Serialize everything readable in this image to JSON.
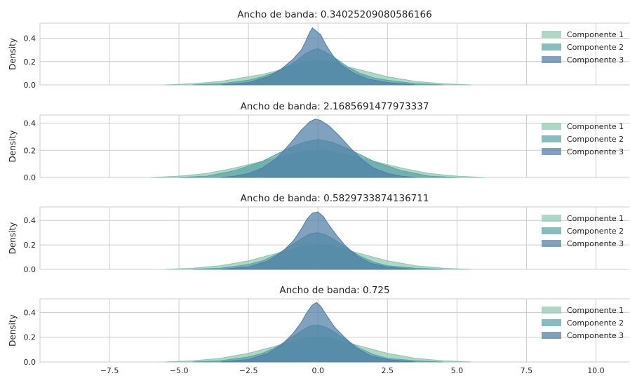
{
  "colors": {
    "grid": "#cccccc",
    "series": [
      "#8fc7ae",
      "#5aa3a6",
      "#4f7ea6"
    ]
  },
  "chart_data": [
    {
      "type": "area",
      "title": "Ancho de banda: 0.34025209080586166",
      "ylabel": "Density",
      "xlim": [
        -10,
        11.2
      ],
      "ylim": [
        0,
        0.53
      ],
      "xticks": [
        -7.5,
        -5.0,
        -2.5,
        0.0,
        2.5,
        5.0,
        7.5,
        10.0
      ],
      "xticklabels": [],
      "yticks": [
        0.0,
        0.2,
        0.4
      ],
      "yticklabels": [
        "0.0",
        "0.2",
        "0.4"
      ],
      "legend_position": "top-right",
      "series": [
        {
          "name": "Componente 1",
          "x": [
            -5.5,
            -4.5,
            -3.5,
            -2.5,
            -2.0,
            -1.5,
            -1.0,
            -0.6,
            -0.3,
            0.0,
            0.3,
            0.6,
            1.0,
            1.5,
            2.0,
            2.5,
            3.5,
            4.5,
            5.5
          ],
          "y": [
            0.0,
            0.01,
            0.03,
            0.07,
            0.09,
            0.12,
            0.16,
            0.19,
            0.2,
            0.21,
            0.2,
            0.19,
            0.16,
            0.13,
            0.1,
            0.07,
            0.03,
            0.01,
            0.0
          ]
        },
        {
          "name": "Componente 2",
          "x": [
            -4.5,
            -3.5,
            -2.5,
            -2.0,
            -1.5,
            -1.1,
            -0.8,
            -0.5,
            -0.2,
            0.0,
            0.2,
            0.5,
            0.8,
            1.1,
            1.5,
            2.0,
            2.5,
            3.5,
            4.5
          ],
          "y": [
            0.0,
            0.01,
            0.04,
            0.07,
            0.11,
            0.16,
            0.2,
            0.26,
            0.3,
            0.31,
            0.29,
            0.25,
            0.2,
            0.15,
            0.1,
            0.06,
            0.04,
            0.01,
            0.0
          ]
        },
        {
          "name": "Componente 3",
          "x": [
            -3.5,
            -2.5,
            -1.8,
            -1.3,
            -0.9,
            -0.6,
            -0.45,
            -0.3,
            -0.2,
            -0.1,
            0.0,
            0.1,
            0.25,
            0.4,
            0.6,
            0.9,
            1.3,
            1.8,
            2.5,
            3.5
          ],
          "y": [
            0.0,
            0.02,
            0.07,
            0.14,
            0.22,
            0.3,
            0.37,
            0.45,
            0.49,
            0.47,
            0.45,
            0.43,
            0.36,
            0.3,
            0.23,
            0.16,
            0.1,
            0.05,
            0.02,
            0.0
          ]
        }
      ]
    },
    {
      "type": "area",
      "title": "Ancho de banda: 2.1685691477973337",
      "ylabel": "Density",
      "xlim": [
        -10,
        11.2
      ],
      "ylim": [
        0,
        0.46
      ],
      "xticks": [
        -7.5,
        -5.0,
        -2.5,
        0.0,
        2.5,
        5.0,
        7.5,
        10.0
      ],
      "xticklabels": [],
      "yticks": [
        0.0,
        0.2,
        0.4
      ],
      "yticklabels": [
        "0.0",
        "0.2",
        "0.4"
      ],
      "legend_position": "top-right",
      "series": [
        {
          "name": "Componente 1",
          "x": [
            -6.0,
            -5.0,
            -4.0,
            -3.0,
            -2.0,
            -1.0,
            -0.5,
            0.0,
            0.5,
            1.0,
            2.0,
            3.0,
            4.0,
            5.0,
            6.0
          ],
          "y": [
            0.0,
            0.01,
            0.03,
            0.07,
            0.12,
            0.17,
            0.19,
            0.2,
            0.19,
            0.17,
            0.12,
            0.07,
            0.03,
            0.01,
            0.0
          ]
        },
        {
          "name": "Componente 2",
          "x": [
            -5.0,
            -4.0,
            -3.0,
            -2.0,
            -1.5,
            -1.0,
            -0.5,
            0.0,
            0.5,
            1.0,
            1.5,
            2.0,
            3.0,
            4.0,
            5.0
          ],
          "y": [
            0.0,
            0.01,
            0.05,
            0.12,
            0.17,
            0.22,
            0.26,
            0.28,
            0.26,
            0.22,
            0.17,
            0.12,
            0.05,
            0.01,
            0.0
          ]
        },
        {
          "name": "Componente 3",
          "x": [
            -3.5,
            -3.0,
            -2.5,
            -2.0,
            -1.5,
            -1.0,
            -0.6,
            -0.3,
            -0.1,
            0.1,
            0.4,
            0.8,
            1.2,
            1.6,
            2.0,
            2.5,
            3.0,
            3.5
          ],
          "y": [
            0.0,
            0.01,
            0.03,
            0.07,
            0.14,
            0.25,
            0.35,
            0.41,
            0.43,
            0.42,
            0.38,
            0.3,
            0.21,
            0.13,
            0.07,
            0.03,
            0.01,
            0.0
          ]
        }
      ]
    },
    {
      "type": "area",
      "title": "Ancho de banda: 0.5829733874136711",
      "ylabel": "Density",
      "xlim": [
        -10,
        11.2
      ],
      "ylim": [
        0,
        0.51
      ],
      "xticks": [
        -7.5,
        -5.0,
        -2.5,
        0.0,
        2.5,
        5.0,
        7.5,
        10.0
      ],
      "xticklabels": [],
      "yticks": [
        0.0,
        0.2,
        0.4
      ],
      "yticklabels": [
        "0.0",
        "0.2",
        "0.4"
      ],
      "legend_position": "top-right",
      "series": [
        {
          "name": "Componente 1",
          "x": [
            -5.5,
            -4.5,
            -3.5,
            -2.5,
            -2.0,
            -1.5,
            -1.0,
            -0.5,
            0.0,
            0.5,
            1.0,
            1.5,
            2.0,
            2.5,
            3.5,
            4.5,
            5.5
          ],
          "y": [
            0.0,
            0.01,
            0.03,
            0.07,
            0.1,
            0.13,
            0.16,
            0.19,
            0.2,
            0.19,
            0.16,
            0.13,
            0.1,
            0.07,
            0.03,
            0.01,
            0.0
          ]
        },
        {
          "name": "Componente 2",
          "x": [
            -4.5,
            -3.5,
            -2.5,
            -2.0,
            -1.5,
            -1.0,
            -0.6,
            -0.3,
            0.0,
            0.3,
            0.6,
            1.0,
            1.5,
            2.0,
            2.5,
            3.5,
            4.5
          ],
          "y": [
            0.0,
            0.01,
            0.04,
            0.07,
            0.12,
            0.19,
            0.25,
            0.29,
            0.3,
            0.28,
            0.24,
            0.18,
            0.11,
            0.06,
            0.03,
            0.01,
            0.0
          ]
        },
        {
          "name": "Componente 3",
          "x": [
            -3.5,
            -2.5,
            -1.8,
            -1.3,
            -0.9,
            -0.6,
            -0.4,
            -0.2,
            0.0,
            0.2,
            0.4,
            0.7,
            1.0,
            1.4,
            1.9,
            2.5,
            3.5
          ],
          "y": [
            0.0,
            0.02,
            0.07,
            0.14,
            0.23,
            0.33,
            0.41,
            0.46,
            0.47,
            0.43,
            0.36,
            0.27,
            0.19,
            0.11,
            0.05,
            0.02,
            0.0
          ]
        }
      ]
    },
    {
      "type": "area",
      "title": "Ancho de banda: 0.725",
      "ylabel": "Density",
      "xlim": [
        -10,
        11.2
      ],
      "ylim": [
        0,
        0.51
      ],
      "xticks": [
        -7.5,
        -5.0,
        -2.5,
        0.0,
        2.5,
        5.0,
        7.5,
        10.0
      ],
      "xticklabels": [
        "−7.5",
        "−5.0",
        "−2.5",
        "0.0",
        "2.5",
        "5.0",
        "7.5",
        "10.0"
      ],
      "yticks": [
        0.0,
        0.2,
        0.4
      ],
      "yticklabels": [
        "0.0",
        "0.2",
        "0.4"
      ],
      "legend_position": "top-right",
      "series": [
        {
          "name": "Componente 1",
          "x": [
            -5.5,
            -4.5,
            -3.5,
            -2.5,
            -2.0,
            -1.5,
            -1.0,
            -0.5,
            0.0,
            0.5,
            1.0,
            1.5,
            2.0,
            2.5,
            3.5,
            4.5,
            5.5
          ],
          "y": [
            0.0,
            0.01,
            0.03,
            0.07,
            0.1,
            0.13,
            0.16,
            0.19,
            0.2,
            0.19,
            0.16,
            0.13,
            0.1,
            0.07,
            0.03,
            0.01,
            0.0
          ]
        },
        {
          "name": "Componente 2",
          "x": [
            -4.5,
            -3.5,
            -2.5,
            -2.0,
            -1.5,
            -1.0,
            -0.6,
            -0.3,
            0.0,
            0.3,
            0.6,
            1.0,
            1.5,
            2.0,
            2.5,
            3.5,
            4.5
          ],
          "y": [
            0.0,
            0.01,
            0.04,
            0.07,
            0.12,
            0.19,
            0.25,
            0.29,
            0.3,
            0.28,
            0.24,
            0.18,
            0.11,
            0.06,
            0.03,
            0.01,
            0.0
          ]
        },
        {
          "name": "Componente 3",
          "x": [
            -3.5,
            -2.5,
            -1.8,
            -1.3,
            -0.9,
            -0.6,
            -0.4,
            -0.2,
            -0.05,
            0.1,
            0.3,
            0.6,
            1.0,
            1.4,
            1.9,
            2.5,
            3.5
          ],
          "y": [
            0.0,
            0.02,
            0.07,
            0.14,
            0.23,
            0.32,
            0.4,
            0.46,
            0.48,
            0.45,
            0.38,
            0.28,
            0.19,
            0.11,
            0.05,
            0.02,
            0.0
          ]
        }
      ]
    }
  ]
}
